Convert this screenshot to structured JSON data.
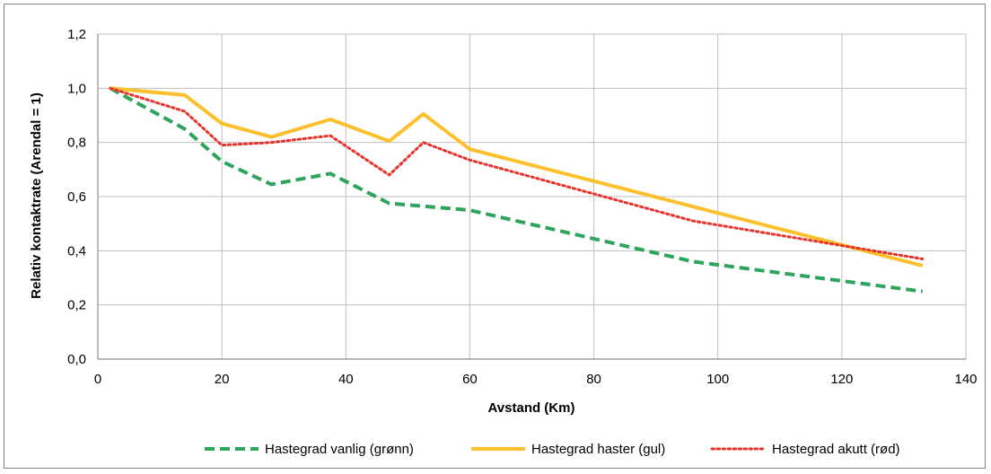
{
  "chart_data": {
    "type": "line",
    "xlabel": "Avstand (Km)",
    "ylabel": "Relativ kontaktrate (Arendal = 1)",
    "xlim": [
      0,
      140
    ],
    "ylim": [
      0,
      1.2
    ],
    "x_ticks": [
      0,
      20,
      40,
      60,
      80,
      100,
      120,
      140
    ],
    "x_tick_labels": [
      "0",
      "20",
      "40",
      "60",
      "80",
      "100",
      "120",
      "140"
    ],
    "y_ticks": [
      0,
      0.2,
      0.4,
      0.6,
      0.8,
      1.0,
      1.2
    ],
    "y_tick_labels": [
      "0,0",
      "0,2",
      "0,4",
      "0,6",
      "0,8",
      "1,0",
      "1,2"
    ],
    "grid": true,
    "legend_position": "bottom",
    "series": [
      {
        "name": "Hastegrad vanlig (grønn)",
        "color": "#2ea55c",
        "style": "dashed",
        "x": [
          2,
          14,
          20,
          28,
          37.5,
          47,
          60,
          96,
          133
        ],
        "y": [
          1.0,
          0.85,
          0.73,
          0.645,
          0.685,
          0.575,
          0.55,
          0.36,
          0.25
        ]
      },
      {
        "name": "Hastegrad haster (gul)",
        "color": "#fcc02c",
        "style": "solid",
        "x": [
          2,
          14,
          20,
          28,
          37.5,
          47,
          52.5,
          60,
          133
        ],
        "y": [
          1.0,
          0.975,
          0.87,
          0.82,
          0.885,
          0.805,
          0.905,
          0.775,
          0.345
        ]
      },
      {
        "name": "Hastegrad akutt (rød)",
        "color": "#e8322c",
        "style": "dotted",
        "x": [
          2,
          14,
          20,
          28,
          37.5,
          47,
          52.5,
          60,
          96,
          133
        ],
        "y": [
          1.0,
          0.915,
          0.79,
          0.8,
          0.825,
          0.68,
          0.8,
          0.735,
          0.51,
          0.37
        ]
      }
    ]
  }
}
